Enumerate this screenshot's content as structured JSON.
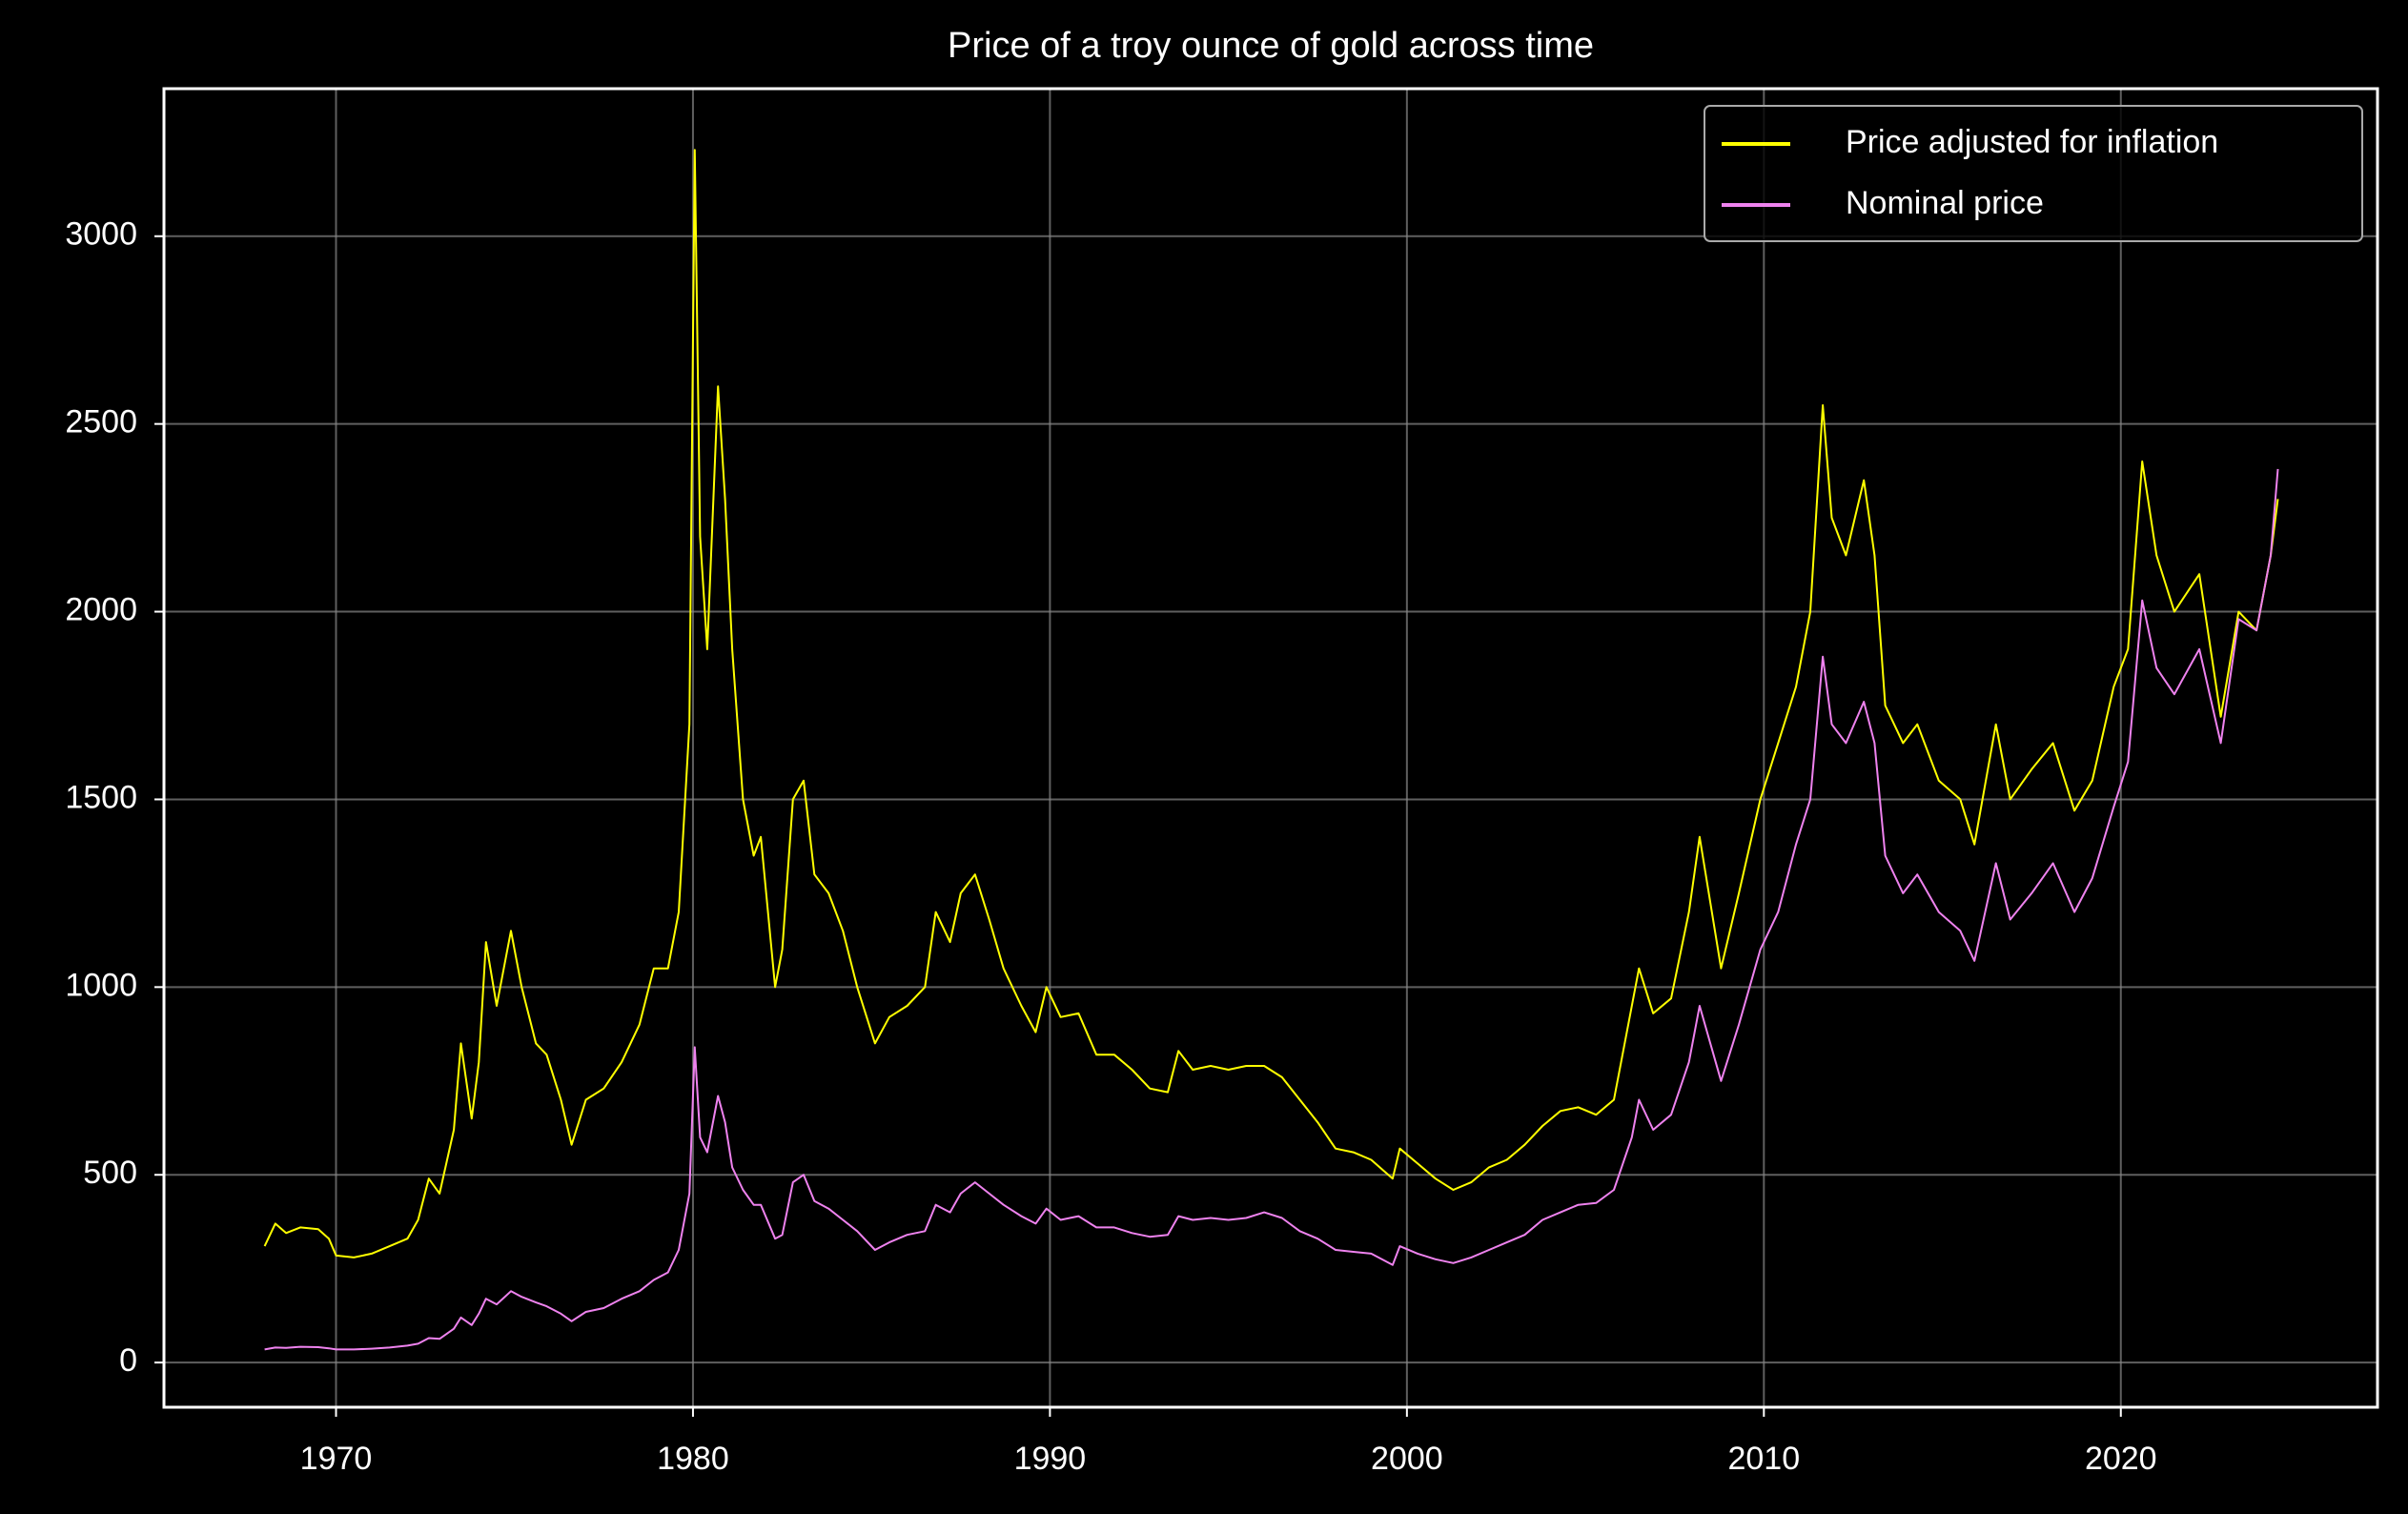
{
  "chart_data": {
    "type": "line",
    "title": "Price of a troy ounce of gold across time",
    "x": [
      1968.0,
      1968.3,
      1968.6,
      1969.0,
      1969.5,
      1969.8,
      1970.0,
      1970.5,
      1971.0,
      1971.5,
      1972.0,
      1972.3,
      1972.6,
      1972.9,
      1973.3,
      1973.5,
      1973.8,
      1974.0,
      1974.2,
      1974.5,
      1974.9,
      1975.2,
      1975.6,
      1975.9,
      1976.3,
      1976.6,
      1977.0,
      1977.5,
      1978.0,
      1978.5,
      1978.9,
      1979.3,
      1979.6,
      1979.9,
      1980.05,
      1980.2,
      1980.4,
      1980.7,
      1980.9,
      1981.1,
      1981.4,
      1981.7,
      1981.9,
      1982.3,
      1982.5,
      1982.8,
      1983.1,
      1983.4,
      1983.8,
      1984.2,
      1984.6,
      1985.1,
      1985.5,
      1986.0,
      1986.5,
      1986.8,
      1987.2,
      1987.5,
      1987.9,
      1988.3,
      1988.7,
      1989.2,
      1989.6,
      1989.9,
      1990.3,
      1990.8,
      1991.3,
      1991.8,
      1992.3,
      1992.8,
      1993.3,
      1993.6,
      1994.0,
      1994.5,
      1995.0,
      1995.5,
      1996.0,
      1996.5,
      1997.0,
      1997.5,
      1998.0,
      1998.5,
      1999.0,
      1999.6,
      1999.8,
      2000.3,
      2000.8,
      2001.3,
      2001.8,
      2002.3,
      2002.8,
      2003.3,
      2003.8,
      2004.3,
      2004.8,
      2005.3,
      2005.8,
      2006.3,
      2006.5,
      2006.9,
      2007.4,
      2007.9,
      2008.2,
      2008.8,
      2009.3,
      2009.9,
      2010.4,
      2010.9,
      2011.3,
      2011.65,
      2011.9,
      2012.3,
      2012.8,
      2013.1,
      2013.4,
      2013.9,
      2014.3,
      2014.9,
      2015.5,
      2015.9,
      2016.5,
      2016.9,
      2017.5,
      2018.1,
      2018.7,
      2019.2,
      2019.8,
      2020.2,
      2020.6,
      2021.0,
      2021.5,
      2022.2,
      2022.8,
      2023.3,
      2023.8,
      2024.2,
      2024.4
    ],
    "series": [
      {
        "name": "Price adjusted for inflation",
        "color": "#ffff00",
        "values": [
          310,
          370,
          345,
          360,
          355,
          330,
          285,
          280,
          290,
          310,
          330,
          380,
          490,
          450,
          620,
          850,
          650,
          800,
          1120,
          950,
          1150,
          1000,
          850,
          820,
          700,
          580,
          700,
          730,
          800,
          900,
          1050,
          1050,
          1200,
          1700,
          3230,
          2200,
          1900,
          2600,
          2300,
          1900,
          1500,
          1350,
          1400,
          1000,
          1100,
          1500,
          1550,
          1300,
          1250,
          1150,
          1000,
          850,
          920,
          950,
          1000,
          1200,
          1120,
          1250,
          1300,
          1180,
          1050,
          950,
          880,
          1000,
          920,
          930,
          820,
          820,
          780,
          730,
          720,
          830,
          780,
          790,
          780,
          790,
          790,
          760,
          700,
          640,
          570,
          560,
          540,
          490,
          570,
          530,
          490,
          460,
          480,
          520,
          540,
          580,
          630,
          670,
          680,
          660,
          700,
          950,
          1050,
          930,
          970,
          1200,
          1400,
          1050,
          1250,
          1500,
          1650,
          1800,
          2000,
          2550,
          2250,
          2150,
          2350,
          2150,
          1750,
          1650,
          1700,
          1550,
          1500,
          1380,
          1700,
          1500,
          1580,
          1650,
          1470,
          1550,
          1800,
          1900,
          2400,
          2150,
          2000,
          2100,
          1720,
          2000,
          1950,
          2150,
          2300
        ]
      },
      {
        "name": "Nominal price",
        "color": "#ee82ee",
        "values": [
          35,
          40,
          39,
          42,
          41,
          38,
          35,
          35,
          37,
          40,
          45,
          50,
          65,
          63,
          90,
          120,
          100,
          130,
          170,
          155,
          190,
          175,
          160,
          150,
          130,
          110,
          135,
          145,
          170,
          190,
          220,
          240,
          300,
          450,
          840,
          600,
          560,
          710,
          640,
          520,
          460,
          420,
          420,
          330,
          340,
          480,
          500,
          430,
          410,
          380,
          350,
          300,
          320,
          340,
          350,
          420,
          400,
          450,
          480,
          450,
          420,
          390,
          370,
          410,
          380,
          390,
          360,
          360,
          345,
          335,
          340,
          390,
          380,
          385,
          380,
          385,
          400,
          385,
          350,
          330,
          300,
          295,
          290,
          260,
          310,
          290,
          275,
          265,
          280,
          300,
          320,
          340,
          380,
          400,
          420,
          425,
          460,
          600,
          700,
          620,
          660,
          800,
          950,
          750,
          900,
          1100,
          1200,
          1380,
          1500,
          1880,
          1700,
          1650,
          1760,
          1650,
          1350,
          1250,
          1300,
          1200,
          1150,
          1070,
          1330,
          1180,
          1250,
          1330,
          1200,
          1290,
          1480,
          1600,
          2030,
          1850,
          1780,
          1900,
          1650,
          1980,
          1950,
          2150,
          2380
        ]
      }
    ],
    "xlim": [
      1965.18,
      2027.19
    ],
    "xticks": [
      1970,
      1980,
      1990,
      2000,
      2010,
      2020
    ],
    "ylim": [
      -119,
      3393
    ],
    "yticks": [
      0,
      500,
      1000,
      1500,
      2000,
      2500,
      3000
    ],
    "grid": true,
    "legend": "upper right"
  }
}
